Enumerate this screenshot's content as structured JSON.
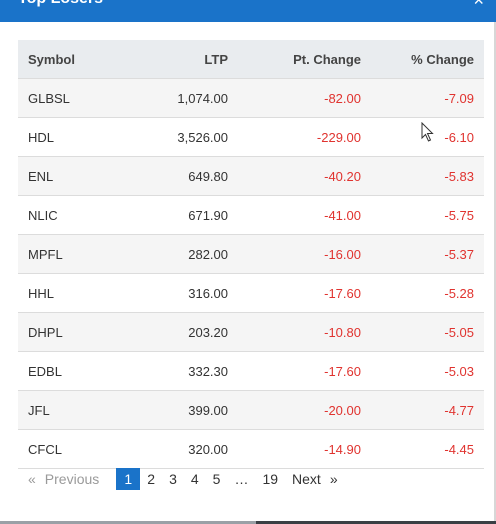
{
  "modal": {
    "title": "Top Losers",
    "close_glyph": "×"
  },
  "table": {
    "headers": {
      "symbol": "Symbol",
      "ltp": "LTP",
      "pt_change": "Pt. Change",
      "pct_change": "% Change"
    },
    "rows": [
      {
        "symbol": "GLBSL",
        "ltp": "1,074.00",
        "pt_change": "-82.00",
        "pct_change": "-7.09"
      },
      {
        "symbol": "HDL",
        "ltp": "3,526.00",
        "pt_change": "-229.00",
        "pct_change": "-6.10"
      },
      {
        "symbol": "ENL",
        "ltp": "649.80",
        "pt_change": "-40.20",
        "pct_change": "-5.83"
      },
      {
        "symbol": "NLIC",
        "ltp": "671.90",
        "pt_change": "-41.00",
        "pct_change": "-5.75"
      },
      {
        "symbol": "MPFL",
        "ltp": "282.00",
        "pt_change": "-16.00",
        "pct_change": "-5.37"
      },
      {
        "symbol": "HHL",
        "ltp": "316.00",
        "pt_change": "-17.60",
        "pct_change": "-5.28"
      },
      {
        "symbol": "DHPL",
        "ltp": "203.20",
        "pt_change": "-10.80",
        "pct_change": "-5.05"
      },
      {
        "symbol": "EDBL",
        "ltp": "332.30",
        "pt_change": "-17.60",
        "pct_change": "-5.03"
      },
      {
        "symbol": "JFL",
        "ltp": "399.00",
        "pt_change": "-20.00",
        "pct_change": "-4.77"
      },
      {
        "symbol": "CFCL",
        "ltp": "320.00",
        "pt_change": "-14.90",
        "pct_change": "-4.45"
      }
    ]
  },
  "pagination": {
    "prev_arrow": "«",
    "prev_label": "Previous",
    "pages": [
      "1",
      "2",
      "3",
      "4",
      "5"
    ],
    "ellipsis": "…",
    "last_page": "19",
    "next_label": "Next",
    "next_arrow": "»",
    "current_page": "1"
  },
  "colors": {
    "header_blue": "#1a73c9",
    "negative_red": "#e0332f",
    "header_row_bg": "#e9ecef",
    "odd_row_bg": "#f5f5f5"
  }
}
